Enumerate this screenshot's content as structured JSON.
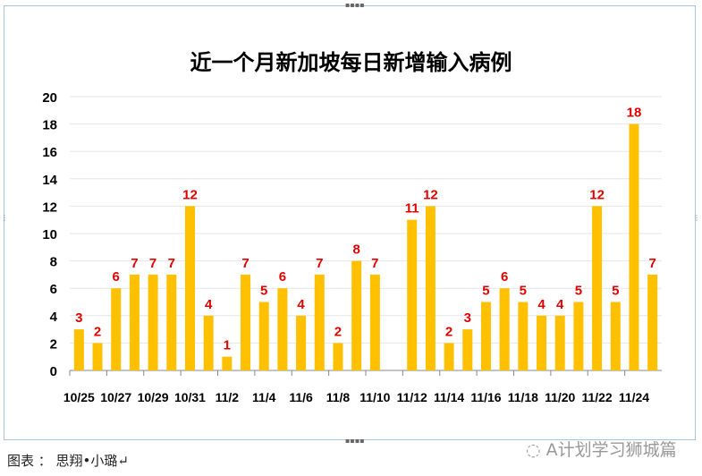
{
  "chart_data": {
    "type": "bar",
    "title": "近一个月新加坡每日新增输入病例",
    "categories": [
      "10/25",
      "10/26",
      "10/27",
      "10/28",
      "10/29",
      "10/30",
      "10/31",
      "11/1",
      "11/2",
      "11/3",
      "11/4",
      "11/5",
      "11/6",
      "11/7",
      "11/8",
      "11/9",
      "11/10",
      "11/11",
      "11/12",
      "11/13",
      "11/14",
      "11/15",
      "11/16",
      "11/17",
      "11/18",
      "11/19",
      "11/20",
      "11/21",
      "11/22",
      "11/23",
      "11/24",
      "11/25"
    ],
    "values": [
      3,
      2,
      6,
      7,
      7,
      7,
      12,
      4,
      1,
      7,
      5,
      6,
      4,
      7,
      2,
      8,
      7,
      null,
      11,
      12,
      2,
      3,
      5,
      6,
      5,
      4,
      4,
      5,
      12,
      5,
      18,
      7
    ],
    "xtick_labels": [
      "10/25",
      "10/27",
      "10/29",
      "10/31",
      "11/2",
      "11/4",
      "11/6",
      "11/8",
      "11/10",
      "11/12",
      "11/14",
      "11/16",
      "11/18",
      "11/20",
      "11/22",
      "11/24"
    ],
    "yticks": [
      0,
      2,
      4,
      6,
      8,
      10,
      12,
      14,
      16,
      18,
      20
    ],
    "ylim": [
      0,
      20
    ],
    "grid": true,
    "bar_color": "#FFC000",
    "label_color": "#E00000",
    "xlabel": "",
    "ylabel": ""
  },
  "footer": {
    "credit": "图表 ： 思翔•小璐↵",
    "watermark": "A计划学习狮城篇"
  }
}
